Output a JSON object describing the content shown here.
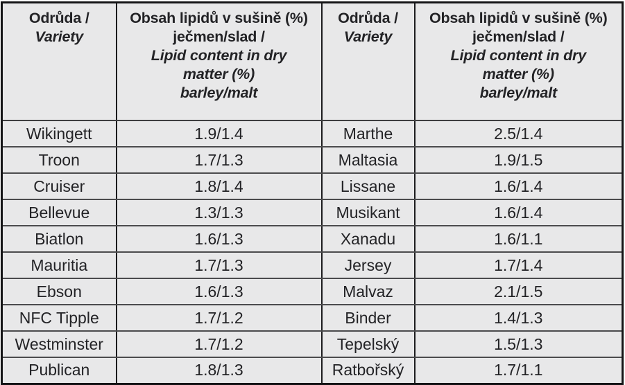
{
  "table": {
    "title_semantic": "Lipid content in dry matter of barley and malt by variety",
    "header": {
      "variety": {
        "cs": "Odrůda /",
        "en": "Variety"
      },
      "lipid": {
        "cs1": "Obsah lipidů v sušině (%)",
        "cs2": "ječmen/slad /",
        "en1": "Lipid content in dry",
        "en2": "matter (%)",
        "en3": "barley/malt"
      }
    },
    "rows": [
      {
        "c1": "Wikingett",
        "c2": "1.9/1.4",
        "c3": "Marthe",
        "c4": "2.5/1.4"
      },
      {
        "c1": "Troon",
        "c2": "1.7/1.3",
        "c3": "Maltasia",
        "c4": "1.9/1.5"
      },
      {
        "c1": "Cruiser",
        "c2": "1.8/1.4",
        "c3": "Lissane",
        "c4": "1.6/1.4"
      },
      {
        "c1": "Bellevue",
        "c2": "1.3/1.3",
        "c3": "Musikant",
        "c4": "1.6/1.4"
      },
      {
        "c1": "Biatlon",
        "c2": "1.6/1.3",
        "c3": "Xanadu",
        "c4": "1.6/1.1"
      },
      {
        "c1": "Mauritia",
        "c2": "1.7/1.3",
        "c3": "Jersey",
        "c4": "1.7/1.4"
      },
      {
        "c1": "Ebson",
        "c2": "1.6/1.3",
        "c3": "Malvaz",
        "c4": "2.1/1.5"
      },
      {
        "c1": "NFC Tipple",
        "c2": "1.7/1.2",
        "c3": "Binder",
        "c4": "1.4/1.3"
      },
      {
        "c1": "Westminster",
        "c2": "1.7/1.2",
        "c3": "Tepelský",
        "c4": "1.5/1.3"
      },
      {
        "c1": "Publican",
        "c2": "1.8/1.3",
        "c3": "Ratbořský",
        "c4": "1.7/1.1"
      }
    ],
    "colors": {
      "cell_background": "#e8e8e9",
      "vertical_rule": "#1b1b1d",
      "horizontal_rule": "#4b4b4d",
      "outer_border": "#141416",
      "text": "#232326"
    }
  }
}
